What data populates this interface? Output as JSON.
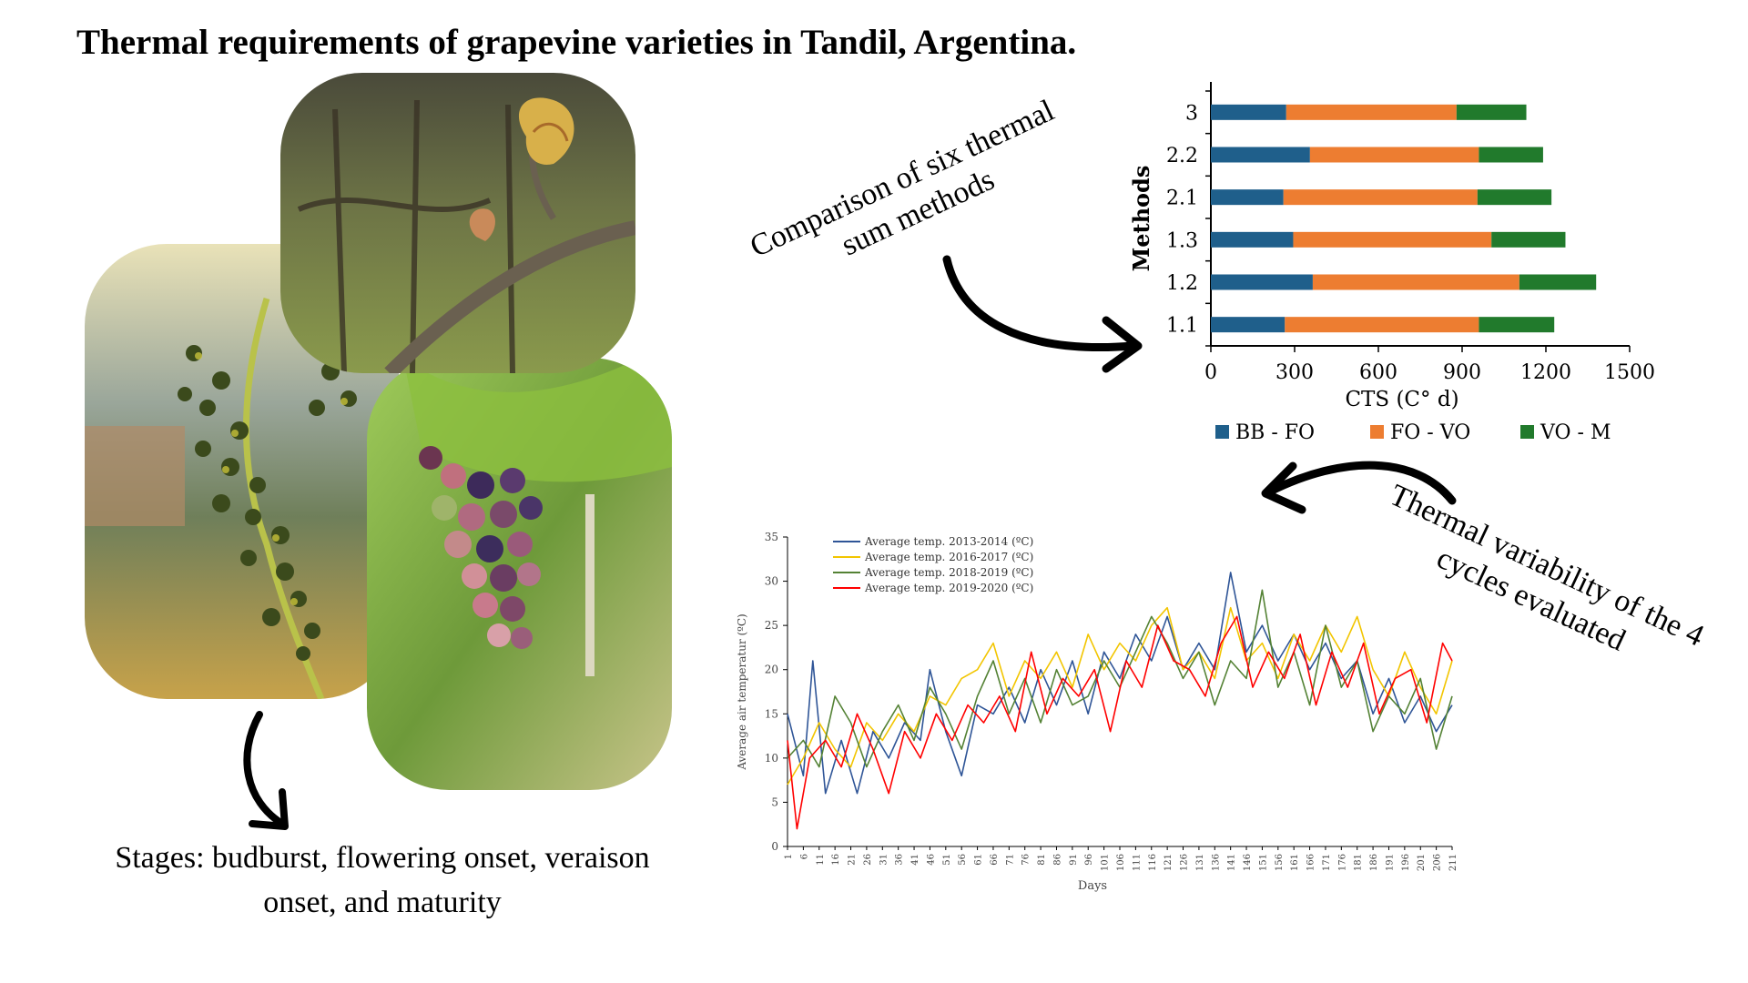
{
  "title": "Thermal requirements of grapevine varieties in Tandil, Argentina.",
  "callouts": {
    "methods": [
      "Comparison of six thermal",
      "sum methods"
    ],
    "variability": [
      "Thermal variability of the 4",
      "cycles evaluated"
    ],
    "stages": [
      "Stages: budburst, flowering onset, veraison",
      "onset, and maturity"
    ]
  },
  "colors": {
    "bb_fo": "#1f5f8b",
    "fo_vo": "#ed7d31",
    "vo_m": "#217a2c"
  },
  "chart_data": [
    {
      "type": "bar",
      "orientation": "horizontal",
      "stacked": true,
      "categories": [
        "3",
        "2.2",
        "2.1",
        "1.3",
        "1.2",
        "1.1"
      ],
      "series": [
        {
          "name": "BB - FO",
          "color": "#1f5f8b",
          "values": [
            270,
            355,
            260,
            295,
            365,
            265
          ]
        },
        {
          "name": "FO - VO",
          "color": "#ed7d31",
          "values": [
            610,
            605,
            695,
            710,
            740,
            695
          ]
        },
        {
          "name": "VO - M",
          "color": "#217a2c",
          "values": [
            250,
            230,
            265,
            265,
            275,
            270
          ]
        }
      ],
      "xlabel": "CTS (C° d)",
      "ylabel": "Methods",
      "xlim": [
        0,
        1500
      ],
      "xticks": [
        "0",
        "300",
        "600",
        "900",
        "1200",
        "1500"
      ],
      "legend": "bottom"
    },
    {
      "type": "line",
      "xlabel": "Days",
      "ylabel": "Average air temperatur (ºC)",
      "ylim": [
        0,
        35
      ],
      "yticks": [
        "0",
        "5",
        "10",
        "15",
        "20",
        "25",
        "30",
        "35"
      ],
      "xlim": [
        1,
        211
      ],
      "xtick_step": 5,
      "legend": "top-left",
      "series": [
        {
          "name": "Average temp. 2013-2014 (ºC)",
          "color": "#2f5597",
          "points": [
            [
              1,
              15
            ],
            [
              6,
              8
            ],
            [
              9,
              21
            ],
            [
              13,
              6
            ],
            [
              18,
              12
            ],
            [
              23,
              6
            ],
            [
              28,
              13
            ],
            [
              33,
              10
            ],
            [
              38,
              14
            ],
            [
              43,
              12
            ],
            [
              46,
              20
            ],
            [
              51,
              13
            ],
            [
              56,
              8
            ],
            [
              61,
              16
            ],
            [
              66,
              15
            ],
            [
              71,
              18
            ],
            [
              76,
              14
            ],
            [
              81,
              20
            ],
            [
              86,
              16
            ],
            [
              91,
              21
            ],
            [
              96,
              15
            ],
            [
              101,
              22
            ],
            [
              106,
              19
            ],
            [
              111,
              24
            ],
            [
              116,
              21
            ],
            [
              121,
              26
            ],
            [
              126,
              20
            ],
            [
              131,
              23
            ],
            [
              136,
              20
            ],
            [
              141,
              31
            ],
            [
              146,
              22
            ],
            [
              151,
              25
            ],
            [
              156,
              21
            ],
            [
              161,
              24
            ],
            [
              166,
              20
            ],
            [
              171,
              23
            ],
            [
              176,
              19
            ],
            [
              181,
              21
            ],
            [
              186,
              15
            ],
            [
              191,
              19
            ],
            [
              196,
              14
            ],
            [
              201,
              17
            ],
            [
              206,
              13
            ],
            [
              211,
              16
            ]
          ]
        },
        {
          "name": "Average temp. 2016-2017 (ºC)",
          "color": "#f2c500",
          "points": [
            [
              1,
              7
            ],
            [
              6,
              10
            ],
            [
              11,
              14
            ],
            [
              16,
              11
            ],
            [
              21,
              9
            ],
            [
              26,
              14
            ],
            [
              31,
              12
            ],
            [
              36,
              15
            ],
            [
              41,
              13
            ],
            [
              46,
              17
            ],
            [
              51,
              16
            ],
            [
              56,
              19
            ],
            [
              61,
              20
            ],
            [
              66,
              23
            ],
            [
              71,
              17
            ],
            [
              76,
              21
            ],
            [
              81,
              19
            ],
            [
              86,
              22
            ],
            [
              91,
              18
            ],
            [
              96,
              24
            ],
            [
              101,
              20
            ],
            [
              106,
              23
            ],
            [
              111,
              21
            ],
            [
              116,
              25
            ],
            [
              121,
              27
            ],
            [
              126,
              20
            ],
            [
              131,
              22
            ],
            [
              136,
              19
            ],
            [
              141,
              27
            ],
            [
              146,
              21
            ],
            [
              151,
              23
            ],
            [
              156,
              19
            ],
            [
              161,
              24
            ],
            [
              166,
              21
            ],
            [
              171,
              25
            ],
            [
              176,
              22
            ],
            [
              181,
              26
            ],
            [
              186,
              20
            ],
            [
              191,
              17
            ],
            [
              196,
              22
            ],
            [
              201,
              18
            ],
            [
              206,
              15
            ],
            [
              211,
              21
            ]
          ]
        },
        {
          "name": "Average temp. 2018-2019 (ºC)",
          "color": "#548235",
          "points": [
            [
              1,
              10
            ],
            [
              6,
              12
            ],
            [
              11,
              9
            ],
            [
              16,
              17
            ],
            [
              21,
              14
            ],
            [
              26,
              9
            ],
            [
              31,
              13
            ],
            [
              36,
              16
            ],
            [
              41,
              12
            ],
            [
              46,
              18
            ],
            [
              51,
              15
            ],
            [
              56,
              11
            ],
            [
              61,
              17
            ],
            [
              66,
              21
            ],
            [
              71,
              15
            ],
            [
              76,
              19
            ],
            [
              81,
              14
            ],
            [
              86,
              20
            ],
            [
              91,
              16
            ],
            [
              96,
              17
            ],
            [
              101,
              21
            ],
            [
              106,
              18
            ],
            [
              111,
              22
            ],
            [
              116,
              26
            ],
            [
              121,
              23
            ],
            [
              126,
              19
            ],
            [
              131,
              22
            ],
            [
              136,
              16
            ],
            [
              141,
              21
            ],
            [
              146,
              19
            ],
            [
              151,
              29
            ],
            [
              156,
              18
            ],
            [
              161,
              22
            ],
            [
              166,
              16
            ],
            [
              171,
              25
            ],
            [
              176,
              18
            ],
            [
              181,
              21
            ],
            [
              186,
              13
            ],
            [
              191,
              17
            ],
            [
              196,
              15
            ],
            [
              201,
              19
            ],
            [
              206,
              11
            ],
            [
              211,
              17
            ]
          ]
        },
        {
          "name": "Average temp. 2019-2020 (ºC)",
          "color": "#ff0000",
          "points": [
            [
              1,
              12
            ],
            [
              4,
              2
            ],
            [
              8,
              10
            ],
            [
              13,
              12
            ],
            [
              18,
              9
            ],
            [
              23,
              15
            ],
            [
              28,
              11
            ],
            [
              33,
              6
            ],
            [
              38,
              13
            ],
            [
              43,
              10
            ],
            [
              48,
              15
            ],
            [
              53,
              12
            ],
            [
              58,
              16
            ],
            [
              63,
              14
            ],
            [
              68,
              17
            ],
            [
              73,
              13
            ],
            [
              78,
              22
            ],
            [
              83,
              15
            ],
            [
              88,
              19
            ],
            [
              93,
              17
            ],
            [
              98,
              20
            ],
            [
              103,
              13
            ],
            [
              108,
              21
            ],
            [
              113,
              18
            ],
            [
              118,
              25
            ],
            [
              123,
              21
            ],
            [
              128,
              20
            ],
            [
              133,
              17
            ],
            [
              138,
              23
            ],
            [
              143,
              26
            ],
            [
              148,
              18
            ],
            [
              153,
              22
            ],
            [
              158,
              19
            ],
            [
              163,
              24
            ],
            [
              168,
              16
            ],
            [
              173,
              22
            ],
            [
              178,
              18
            ],
            [
              183,
              23
            ],
            [
              188,
              15
            ],
            [
              193,
              19
            ],
            [
              198,
              20
            ],
            [
              203,
              14
            ],
            [
              208,
              23
            ],
            [
              211,
              21
            ]
          ]
        }
      ]
    }
  ]
}
